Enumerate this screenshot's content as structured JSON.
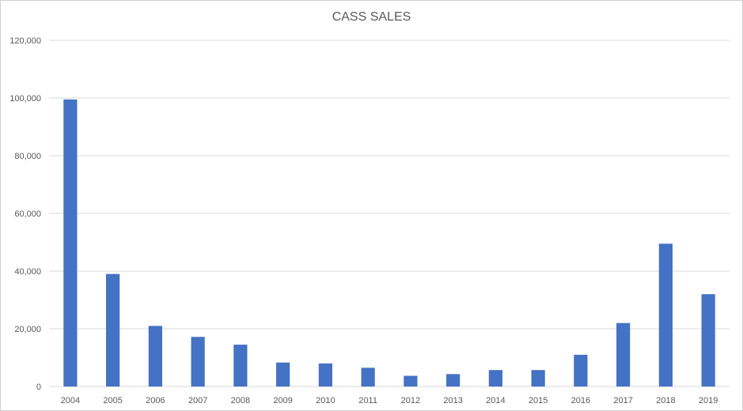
{
  "chart_data": {
    "type": "bar",
    "title": "CASS SALES",
    "xlabel": "",
    "ylabel": "",
    "categories": [
      "2004",
      "2005",
      "2006",
      "2007",
      "2008",
      "2009",
      "2010",
      "2011",
      "2012",
      "2013",
      "2014",
      "2015",
      "2016",
      "2017",
      "2018",
      "2019"
    ],
    "values": [
      99500,
      39000,
      21000,
      17200,
      14500,
      8300,
      8000,
      6500,
      3700,
      4300,
      5700,
      5700,
      11000,
      22000,
      49500,
      32000
    ],
    "ylim": [
      0,
      120000
    ],
    "yticks": [
      "0",
      "20,000",
      "40,000",
      "60,000",
      "80,000",
      "100,000",
      "120,000"
    ],
    "ytick_values": [
      0,
      20000,
      40000,
      60000,
      80000,
      100000,
      120000
    ],
    "grid": true,
    "legend": "none",
    "bar_color": "#4472C4",
    "grid_color": "#d9d9d9"
  }
}
